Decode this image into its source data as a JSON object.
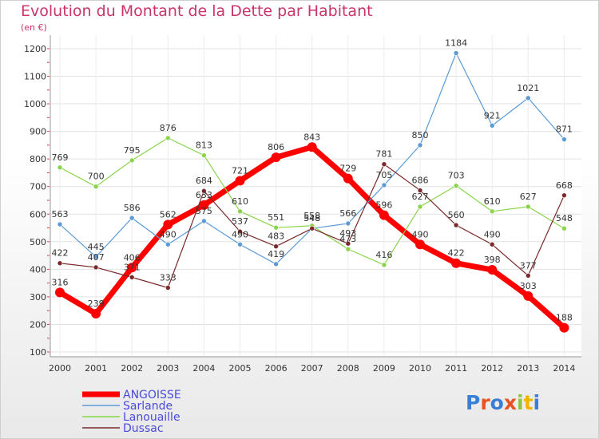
{
  "header": {
    "title": "Evolution du Montant de la Dette par Habitant",
    "subtitle": "(en €)"
  },
  "logo": {
    "text": "Proxiti",
    "colors": [
      "#3a7fd5",
      "#e8541e",
      "#3a7fd5",
      "#e8541e",
      "#8cc63f",
      "#f2b400",
      "#3a7fd5"
    ]
  },
  "chart_data": {
    "type": "line",
    "title": "Evolution du Montant de la Dette par Habitant",
    "ylabel": "(en €)",
    "ylim": [
      100,
      1200
    ],
    "yticks": [
      100,
      200,
      300,
      400,
      500,
      600,
      700,
      800,
      900,
      1000,
      1100,
      1200
    ],
    "grid": true,
    "legend_position": "bottom-left",
    "x": [
      "2000",
      "2001",
      "2002",
      "2003",
      "2004",
      "2005",
      "2006",
      "2007",
      "2008",
      "2009",
      "2010",
      "2011",
      "2012",
      "2013",
      "2014"
    ],
    "series": [
      {
        "name": "ANGOISSE",
        "color": "#ff0000",
        "width": 7,
        "marker": 6,
        "values": [
          316,
          239,
          406,
          562,
          633,
          721,
          806,
          843,
          729,
          596,
          490,
          422,
          398,
          303,
          188
        ]
      },
      {
        "name": "Sarlande",
        "color": "#5b9bd5",
        "width": 1.2,
        "marker": 3,
        "values": [
          563,
          445,
          586,
          490,
          575,
          490,
          419,
          548,
          566,
          705,
          850,
          1184,
          921,
          1021,
          871
        ]
      },
      {
        "name": "Lanouaille",
        "color": "#8ad44a",
        "width": 1.2,
        "marker": 3,
        "values": [
          769,
          700,
          795,
          876,
          813,
          610,
          551,
          558,
          473,
          416,
          627,
          703,
          610,
          627,
          548
        ]
      },
      {
        "name": "Dussac",
        "color": "#7a2a2a",
        "width": 1.2,
        "marker": 3,
        "values": [
          422,
          407,
          371,
          333,
          684,
          537,
          483,
          548,
          493,
          781,
          686,
          560,
          490,
          377,
          668
        ]
      }
    ]
  }
}
